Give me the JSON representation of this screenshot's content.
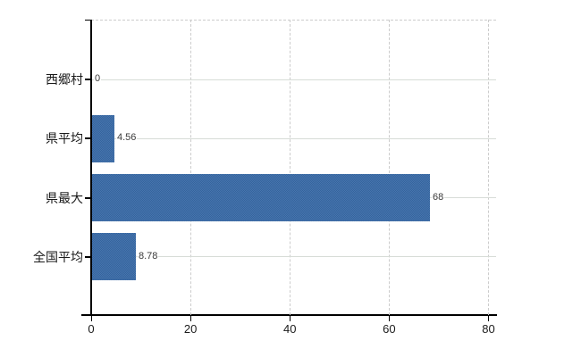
{
  "chart_data": {
    "type": "bar",
    "orientation": "horizontal",
    "title": "",
    "categories": [
      "西郷村",
      "県平均",
      "県最大",
      "全国平均"
    ],
    "values": [
      0,
      4.56,
      68,
      8.78
    ],
    "value_labels": [
      "0",
      "4.56",
      "68",
      "8.78"
    ],
    "series": [
      {
        "name": "",
        "values": [
          0,
          4.56,
          68,
          8.78
        ]
      }
    ],
    "xticks": [
      0,
      20,
      40,
      60,
      80
    ],
    "xtick_labels": [
      "0",
      "20",
      "40",
      "60",
      "80"
    ],
    "xlim": [
      0,
      80
    ],
    "xlabel": "",
    "ylabel": "",
    "grid": true,
    "legend": false,
    "colors": {
      "bar": "#3a6ca6",
      "bar_checker_dark": "#34649e",
      "bar_checker_light": "#4875ad",
      "row_gridline": "#d7dcd7",
      "x_gridline": "#cccccc",
      "plot_border_dashed": "#cccccc",
      "axis": "#000000",
      "label_text": "#3a3a3a",
      "background": "#ffffff"
    }
  }
}
